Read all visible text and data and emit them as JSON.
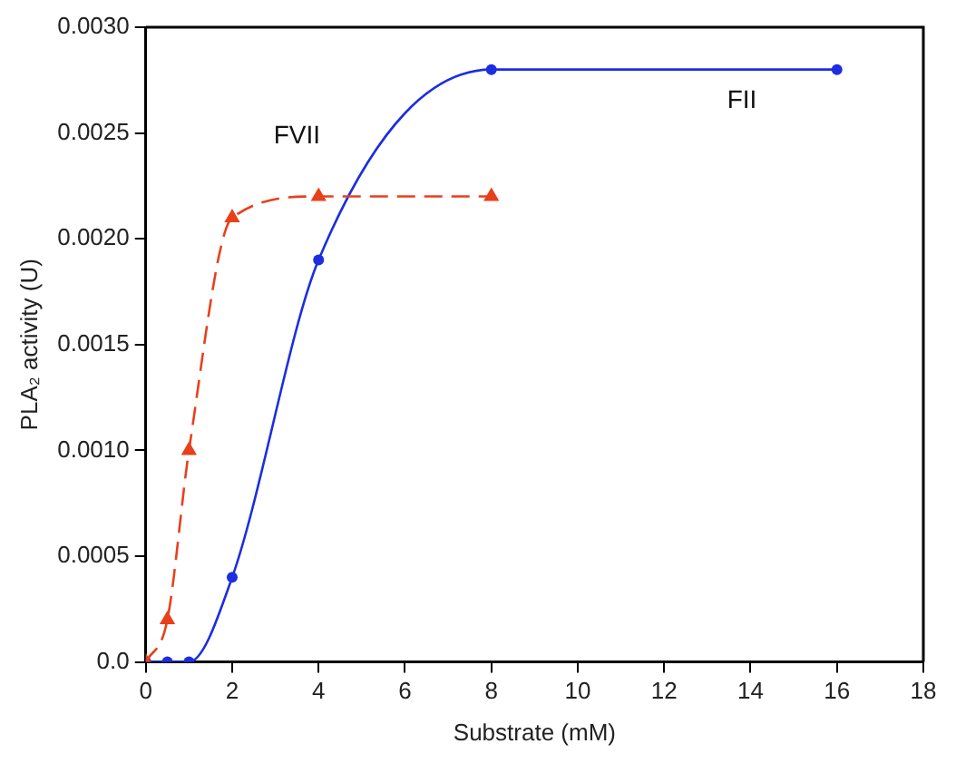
{
  "chart_data": {
    "type": "line",
    "xlabel": "Substrate (mM)",
    "ylabel": "PLA₂ activity (U)",
    "xlim": [
      0,
      18
    ],
    "xticks": [
      0,
      2,
      4,
      6,
      8,
      10,
      12,
      14,
      16,
      18
    ],
    "ylim": [
      0,
      0.003
    ],
    "yticks": [
      {
        "value": 0,
        "label": "0.0"
      },
      {
        "value": 0.0005,
        "label": "0.0005"
      },
      {
        "value": 0.001,
        "label": "0.0010"
      },
      {
        "value": 0.0015,
        "label": "0.0015"
      },
      {
        "value": 0.002,
        "label": "0.0020"
      },
      {
        "value": 0.0025,
        "label": "0.0025"
      },
      {
        "value": 0.003,
        "label": "0.0030"
      }
    ],
    "grid": false,
    "legend": false,
    "series": [
      {
        "name": "FVII",
        "color": "#e8401c",
        "marker": "triangle",
        "line_style": "dashed",
        "x": [
          0,
          0.5,
          1,
          2,
          4,
          8
        ],
        "values": [
          0,
          0.0002,
          0.001,
          0.0021,
          0.0022,
          0.0022
        ]
      },
      {
        "name": "FII",
        "color": "#1c2ee0",
        "marker": "circle",
        "line_style": "solid",
        "x": [
          0,
          0.5,
          1,
          2,
          4,
          8,
          16
        ],
        "values": [
          0,
          0,
          0,
          0.0004,
          0.0019,
          0.0028,
          0.0028
        ]
      }
    ]
  }
}
